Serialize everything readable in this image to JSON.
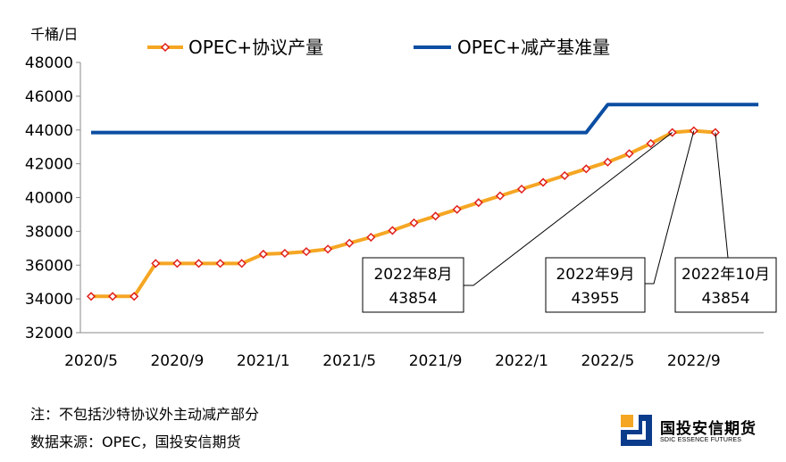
{
  "chart_data": {
    "type": "line",
    "unit_label": "千桶/日",
    "ylim": [
      32000,
      48000
    ],
    "y_ticks": [
      "32000",
      "34000",
      "36000",
      "38000",
      "40000",
      "42000",
      "44000",
      "46000",
      "48000"
    ],
    "x_ticks": [
      "2020/5",
      "2020/9",
      "2021/1",
      "2021/5",
      "2021/9",
      "2022/1",
      "2022/5",
      "2022/9"
    ],
    "x": [
      "2020/5",
      "2020/6",
      "2020/7",
      "2020/8",
      "2020/9",
      "2020/10",
      "2020/11",
      "2020/12",
      "2021/1",
      "2021/2",
      "2021/3",
      "2021/4",
      "2021/5",
      "2021/6",
      "2021/7",
      "2021/8",
      "2021/9",
      "2021/10",
      "2021/11",
      "2021/12",
      "2022/1",
      "2022/2",
      "2022/3",
      "2022/4",
      "2022/5",
      "2022/6",
      "2022/7",
      "2022/8",
      "2022/9",
      "2022/10",
      "2022/11",
      "2022/12"
    ],
    "series": [
      {
        "name": "OPEC+协议产量",
        "color": "#F5A623",
        "marker_color": "#E0201B",
        "values": [
          34150,
          34150,
          34150,
          36100,
          36100,
          36100,
          36100,
          36100,
          36650,
          36700,
          36800,
          36950,
          37300,
          37650,
          38050,
          38500,
          38900,
          39300,
          39700,
          40100,
          40500,
          40900,
          41300,
          41700,
          42100,
          42600,
          43200,
          43854,
          43955,
          43854,
          null,
          null
        ]
      },
      {
        "name": "OPEC+减产基准量",
        "color": "#0B4EA2",
        "values": [
          43850,
          43850,
          43850,
          43850,
          43850,
          43850,
          43850,
          43850,
          43850,
          43850,
          43850,
          43850,
          43850,
          43850,
          43850,
          43850,
          43850,
          43850,
          43850,
          43850,
          43850,
          43850,
          43850,
          43850,
          45500,
          45500,
          45500,
          45500,
          45500,
          45500,
          45500,
          45500
        ]
      }
    ],
    "annotations": [
      {
        "label": "2022年8月",
        "value": "43854"
      },
      {
        "label": "2022年9月",
        "value": "43955"
      },
      {
        "label": "2022年10月",
        "value": "43854"
      }
    ]
  },
  "footer": {
    "note": "注：不包括沙特协议外主动减产部分",
    "source": "数据来源：OPEC，国投安信期货"
  },
  "brand": {
    "name_cn": "国投安信期货",
    "name_en": "SDIC ESSENCE FUTURES"
  }
}
